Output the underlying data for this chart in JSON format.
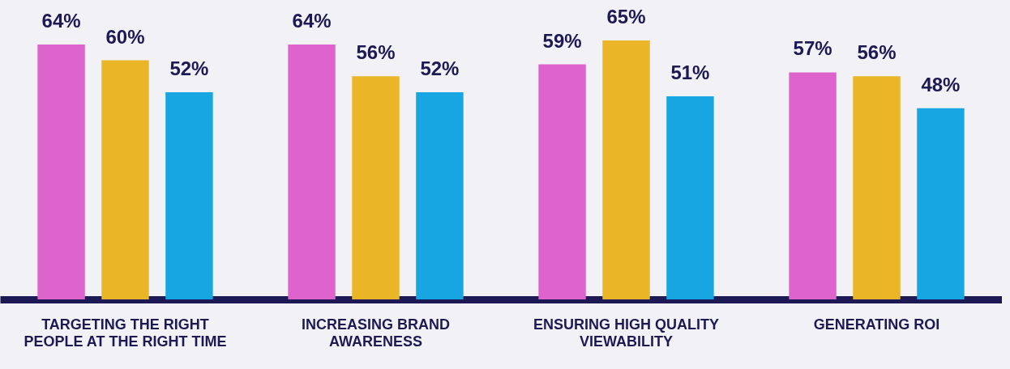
{
  "chart_data": {
    "type": "bar",
    "categories": [
      "TARGETING THE RIGHT PEOPLE AT THE RIGHT TIME",
      "INCREASING BRAND AWARENESS",
      "ENSURING HIGH QUALITY VIEWABILITY",
      "GENERATING ROI"
    ],
    "series": [
      {
        "color": "#dd64cc",
        "values": [
          64,
          64,
          59,
          57
        ],
        "value_labels": [
          "64%",
          "64%",
          "59%",
          "57%"
        ]
      },
      {
        "color": "#eab526",
        "values": [
          60,
          56,
          65,
          56
        ],
        "value_labels": [
          "60%",
          "56%",
          "65%",
          "56%"
        ]
      },
      {
        "color": "#17a6e2",
        "values": [
          52,
          52,
          51,
          48
        ],
        "value_labels": [
          "52%",
          "52%",
          "51%",
          "48%"
        ]
      }
    ]
  }
}
